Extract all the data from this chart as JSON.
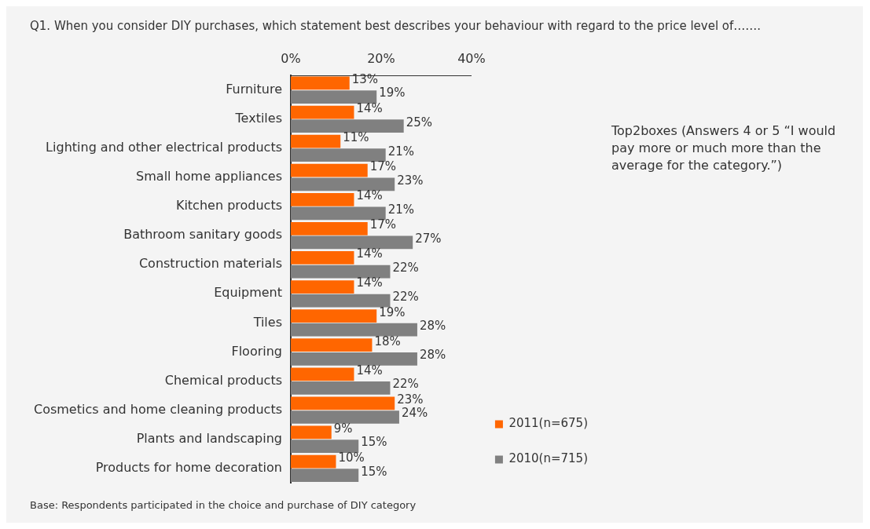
{
  "chart_data": {
    "type": "bar",
    "orientation": "horizontal",
    "title": "Q1. When you consider DIY purchases,  which statement best describes your behaviour with regard to the price level of…….",
    "categories": [
      "Furniture",
      "Textiles",
      "Lighting and other electrical products",
      "Small home appliances",
      "Kitchen products",
      "Bathroom sanitary goods",
      "Construction materials",
      "Equipment",
      "Tiles",
      "Flooring",
      "Chemical products",
      "Cosmetics and home cleaning products",
      "Plants and landscaping",
      "Products for home decoration"
    ],
    "series": [
      {
        "name": "2011(n=675)",
        "color": "#ff6600",
        "values": [
          13,
          14,
          11,
          17,
          14,
          17,
          14,
          14,
          19,
          18,
          14,
          23,
          9,
          10
        ],
        "value_labels": [
          "13%",
          "14%",
          "11%",
          "17%",
          "14%",
          "17%",
          "14%",
          "14%",
          "19%",
          "18%",
          "14%",
          "23%",
          "9%",
          "10%"
        ]
      },
      {
        "name": "2010(n=715)",
        "color": "#808080",
        "values": [
          19,
          25,
          21,
          23,
          21,
          27,
          22,
          22,
          28,
          28,
          22,
          24,
          15,
          15
        ],
        "value_labels": [
          "19%",
          "25%",
          "21%",
          "23%",
          "21%",
          "27%",
          "22%",
          "22%",
          "28%",
          "28%",
          "22%",
          "24%",
          "15%",
          "15%"
        ]
      }
    ],
    "xlim": [
      0,
      40
    ],
    "xticks": [
      {
        "value": 0,
        "label": "0%"
      },
      {
        "value": 20,
        "label": "20%"
      },
      {
        "value": 40,
        "label": "40%"
      }
    ],
    "legend": "bottom right",
    "annotations": [
      "Top2boxes (Answers 4 or 5 “I would pay more or much more than the average for the category.”)",
      "Base: Respondents participated  in the choice and purchase of DIY category"
    ]
  }
}
